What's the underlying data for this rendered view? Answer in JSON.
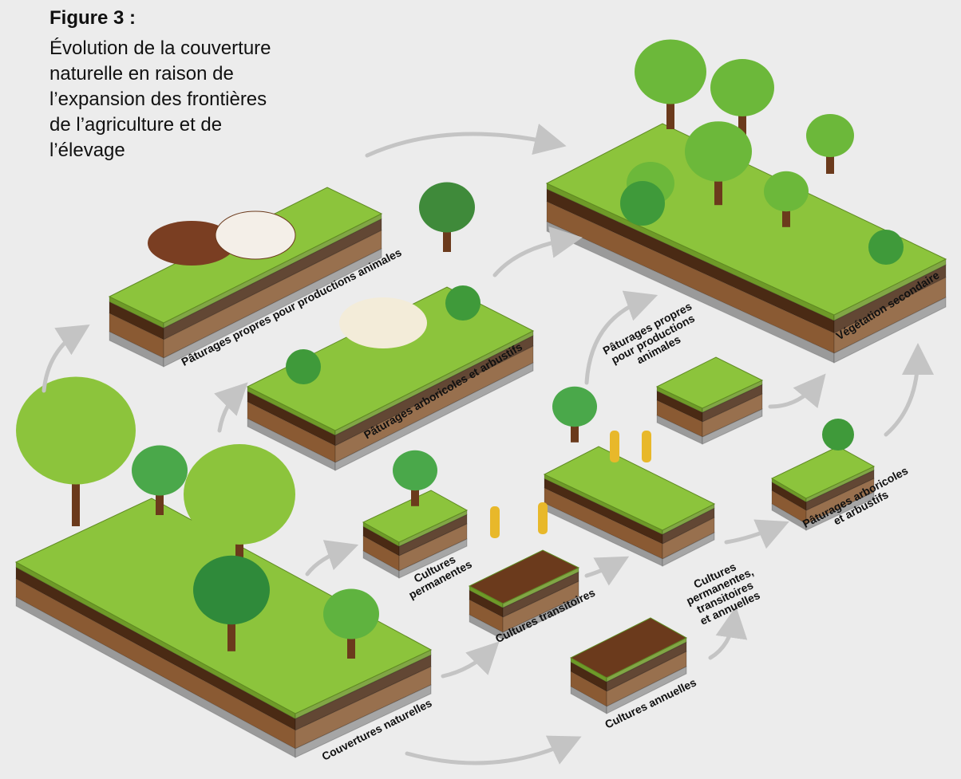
{
  "header": {
    "title": "Figure 3 :",
    "description": [
      "Évolution de la couverture",
      "naturelle en raison de",
      "l’expansion des frontières",
      "de l’agriculture et de",
      "l’élevage"
    ]
  },
  "nodes": [
    {
      "label": [
        "Pâturages propres pour productions animales"
      ]
    },
    {
      "label": [
        "Pâturages arboricoles et arbustifs"
      ]
    },
    {
      "label": [
        "Végétation secondaire"
      ]
    },
    {
      "label": [
        "Pâturages propres",
        "pour productions",
        "animales"
      ]
    },
    {
      "label": [
        "Cultures",
        "permanentes"
      ]
    },
    {
      "label": [
        "Cultures transitoires"
      ]
    },
    {
      "label": [
        "Cultures",
        "permanentes,",
        "transitoires",
        "et annuelles"
      ]
    },
    {
      "label": [
        "Pâturages arboricoles",
        "et arbustifs"
      ]
    },
    {
      "label": [
        "Cultures annuelles"
      ]
    },
    {
      "label": [
        "Couvertures naturelles"
      ]
    }
  ]
}
